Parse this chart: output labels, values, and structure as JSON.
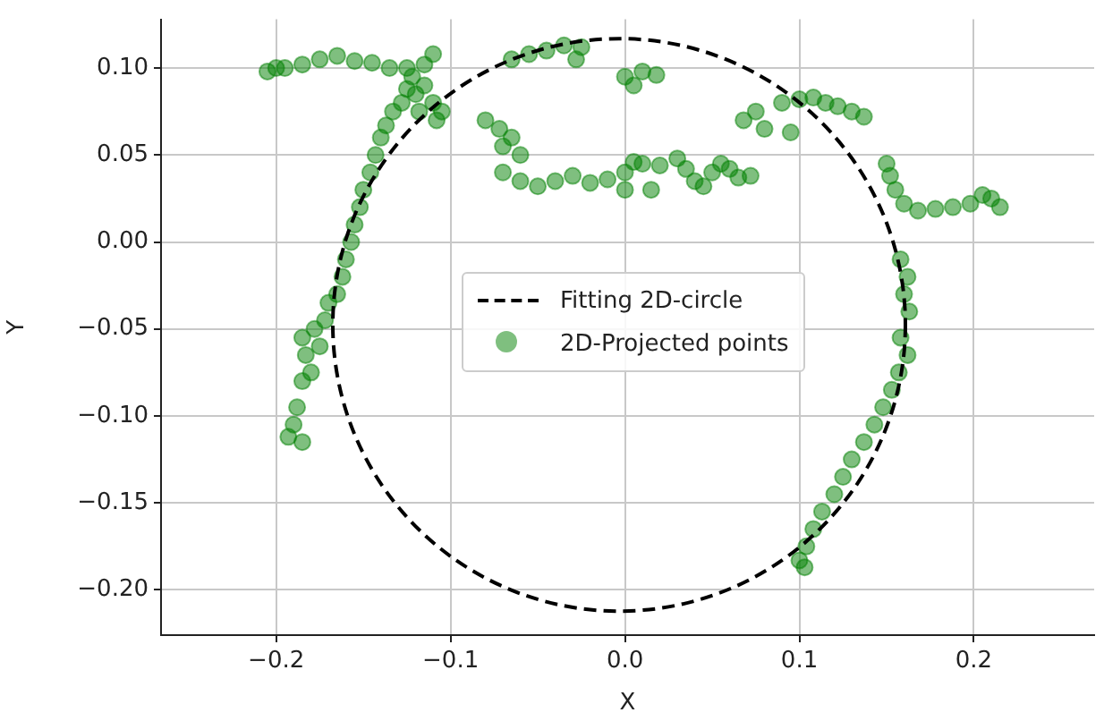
{
  "chart_data": {
    "type": "scatter",
    "xlabel": "X",
    "ylabel": "Y",
    "xlim": [
      -0.266,
      0.269
    ],
    "ylim": [
      -0.226,
      0.128
    ],
    "xticks": [
      {
        "value": -0.2,
        "label": "−0.2"
      },
      {
        "value": -0.1,
        "label": "−0.1"
      },
      {
        "value": 0,
        "label": "0.0"
      },
      {
        "value": 0.1,
        "label": "0.1"
      },
      {
        "value": 0.2,
        "label": "0.2"
      }
    ],
    "yticks": [
      {
        "value": -0.2,
        "label": "−0.20"
      },
      {
        "value": -0.15,
        "label": "−0.15"
      },
      {
        "value": -0.1,
        "label": "−0.10"
      },
      {
        "value": -0.05,
        "label": "−0.05"
      },
      {
        "value": 0,
        "label": "0.00"
      },
      {
        "value": 0.05,
        "label": "0.05"
      },
      {
        "value": 0.1,
        "label": "0.10"
      }
    ],
    "grid": true,
    "legend": "center",
    "annotations": [
      "Fitting 2D-circle"
    ],
    "series": [
      {
        "name": "2D-Projected points",
        "type": "scatter",
        "color": "#008000",
        "marker": "circle",
        "x": [
          -0.193,
          -0.19,
          -0.185,
          -0.188,
          -0.185,
          -0.183,
          -0.18,
          -0.185,
          -0.178,
          -0.175,
          -0.172,
          -0.17,
          -0.165,
          -0.162,
          -0.16,
          -0.157,
          -0.155,
          -0.152,
          -0.15,
          -0.146,
          -0.143,
          -0.14,
          -0.137,
          -0.133,
          -0.128,
          -0.125,
          -0.12,
          -0.115,
          -0.118,
          -0.122,
          -0.108,
          -0.105,
          -0.11,
          -0.205,
          -0.2,
          -0.195,
          -0.185,
          -0.175,
          -0.165,
          -0.155,
          -0.145,
          -0.135,
          -0.125,
          -0.115,
          -0.11,
          -0.065,
          -0.055,
          -0.045,
          -0.035,
          -0.025,
          -0.028,
          -0.08,
          -0.072,
          -0.065,
          -0.07,
          -0.06,
          -0.07,
          -0.06,
          -0.05,
          -0.04,
          -0.03,
          -0.02,
          -0.01,
          0.0,
          0.005,
          0.01,
          0.02,
          0.03,
          0.035,
          0.04,
          0.045,
          0.05,
          0.055,
          0.06,
          0.065,
          0.072,
          0.015,
          0.0,
          0.0,
          0.01,
          0.018,
          0.005,
          0.068,
          0.075,
          0.08,
          0.09,
          0.1,
          0.108,
          0.115,
          0.122,
          0.13,
          0.137,
          0.095,
          0.15,
          0.152,
          0.155,
          0.16,
          0.168,
          0.178,
          0.188,
          0.198,
          0.205,
          0.21,
          0.215,
          0.158,
          0.162,
          0.16,
          0.163,
          0.158,
          0.162,
          0.157,
          0.153,
          0.148,
          0.143,
          0.137,
          0.13,
          0.125,
          0.12,
          0.113,
          0.108,
          0.104,
          0.1,
          0.103
        ],
        "values": [
          -0.112,
          -0.105,
          -0.115,
          -0.095,
          -0.08,
          -0.065,
          -0.075,
          -0.055,
          -0.05,
          -0.06,
          -0.045,
          -0.035,
          -0.03,
          -0.02,
          -0.01,
          0.0,
          0.01,
          0.02,
          0.03,
          0.04,
          0.05,
          0.06,
          0.067,
          0.075,
          0.08,
          0.088,
          0.085,
          0.09,
          0.075,
          0.095,
          0.07,
          0.075,
          0.08,
          0.098,
          0.1,
          0.1,
          0.102,
          0.105,
          0.107,
          0.104,
          0.103,
          0.1,
          0.1,
          0.102,
          0.108,
          0.105,
          0.108,
          0.11,
          0.113,
          0.112,
          0.105,
          0.07,
          0.065,
          0.06,
          0.055,
          0.05,
          0.04,
          0.035,
          0.032,
          0.035,
          0.038,
          0.034,
          0.036,
          0.04,
          0.046,
          0.045,
          0.044,
          0.048,
          0.042,
          0.035,
          0.032,
          0.04,
          0.045,
          0.042,
          0.037,
          0.038,
          0.03,
          0.03,
          0.095,
          0.098,
          0.096,
          0.09,
          0.07,
          0.075,
          0.065,
          0.08,
          0.082,
          0.083,
          0.08,
          0.078,
          0.075,
          0.072,
          0.063,
          0.045,
          0.038,
          0.03,
          0.022,
          0.018,
          0.019,
          0.02,
          0.022,
          0.027,
          0.025,
          0.02,
          -0.01,
          -0.02,
          -0.03,
          -0.04,
          -0.055,
          -0.065,
          -0.075,
          -0.085,
          -0.095,
          -0.105,
          -0.115,
          -0.125,
          -0.135,
          -0.145,
          -0.155,
          -0.165,
          -0.175,
          -0.183,
          -0.187
        ]
      }
    ]
  }
}
